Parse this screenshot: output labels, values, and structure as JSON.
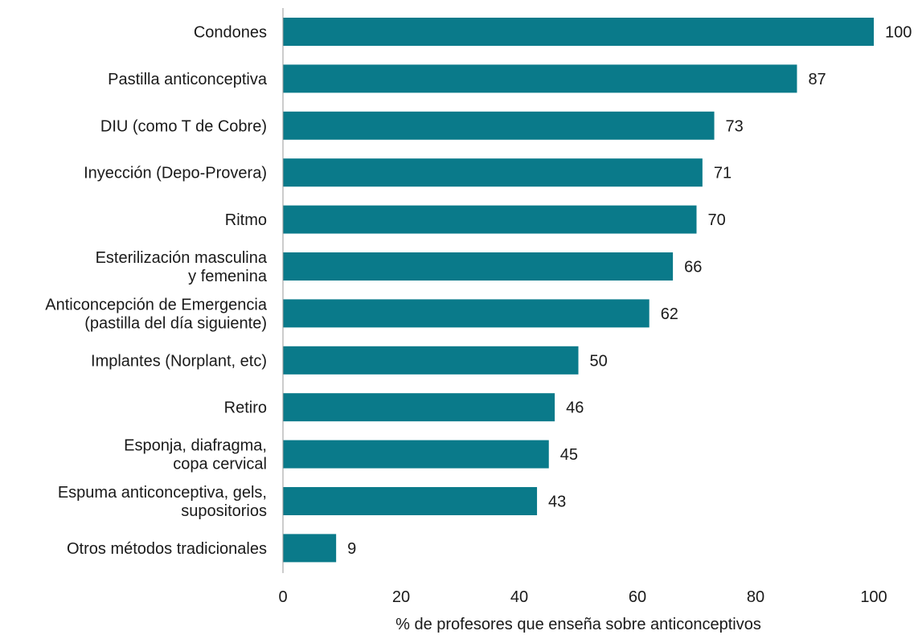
{
  "chart_data": {
    "type": "bar",
    "orientation": "horizontal",
    "categories": [
      [
        "Condones"
      ],
      [
        "Pastilla anticonceptiva"
      ],
      [
        "DIU (como T de Cobre)"
      ],
      [
        "Inyección (Depo-Provera)"
      ],
      [
        "Ritmo"
      ],
      [
        "Esterilización masculina",
        "y femenina"
      ],
      [
        "Anticoncepción de Emergencia",
        "(pastilla del día siguiente)"
      ],
      [
        "Implantes (Norplant, etc)"
      ],
      [
        "Retiro"
      ],
      [
        "Esponja, diafragma,",
        "copa cervical"
      ],
      [
        "Espuma anticonceptiva, gels,",
        "supositorios"
      ],
      [
        "Otros métodos tradicionales"
      ]
    ],
    "values": [
      100,
      87,
      73,
      71,
      70,
      66,
      62,
      50,
      46,
      45,
      43,
      9
    ],
    "value_labels": [
      "100",
      "87",
      "73",
      "71",
      "70",
      "66",
      "62",
      "50",
      "46",
      "45",
      "43",
      "9"
    ],
    "xlabel": "% de profesores que enseña sobre anticonceptivos",
    "ylabel": "",
    "xlim": [
      0,
      100
    ],
    "xticks": [
      0,
      20,
      40,
      60,
      80,
      100
    ],
    "xtick_labels": [
      "0",
      "20",
      "40",
      "60",
      "80",
      "100"
    ],
    "bar_color": "#0a7a8a",
    "axis_color": "#9a9a9a",
    "grid": false,
    "legend": "none"
  }
}
